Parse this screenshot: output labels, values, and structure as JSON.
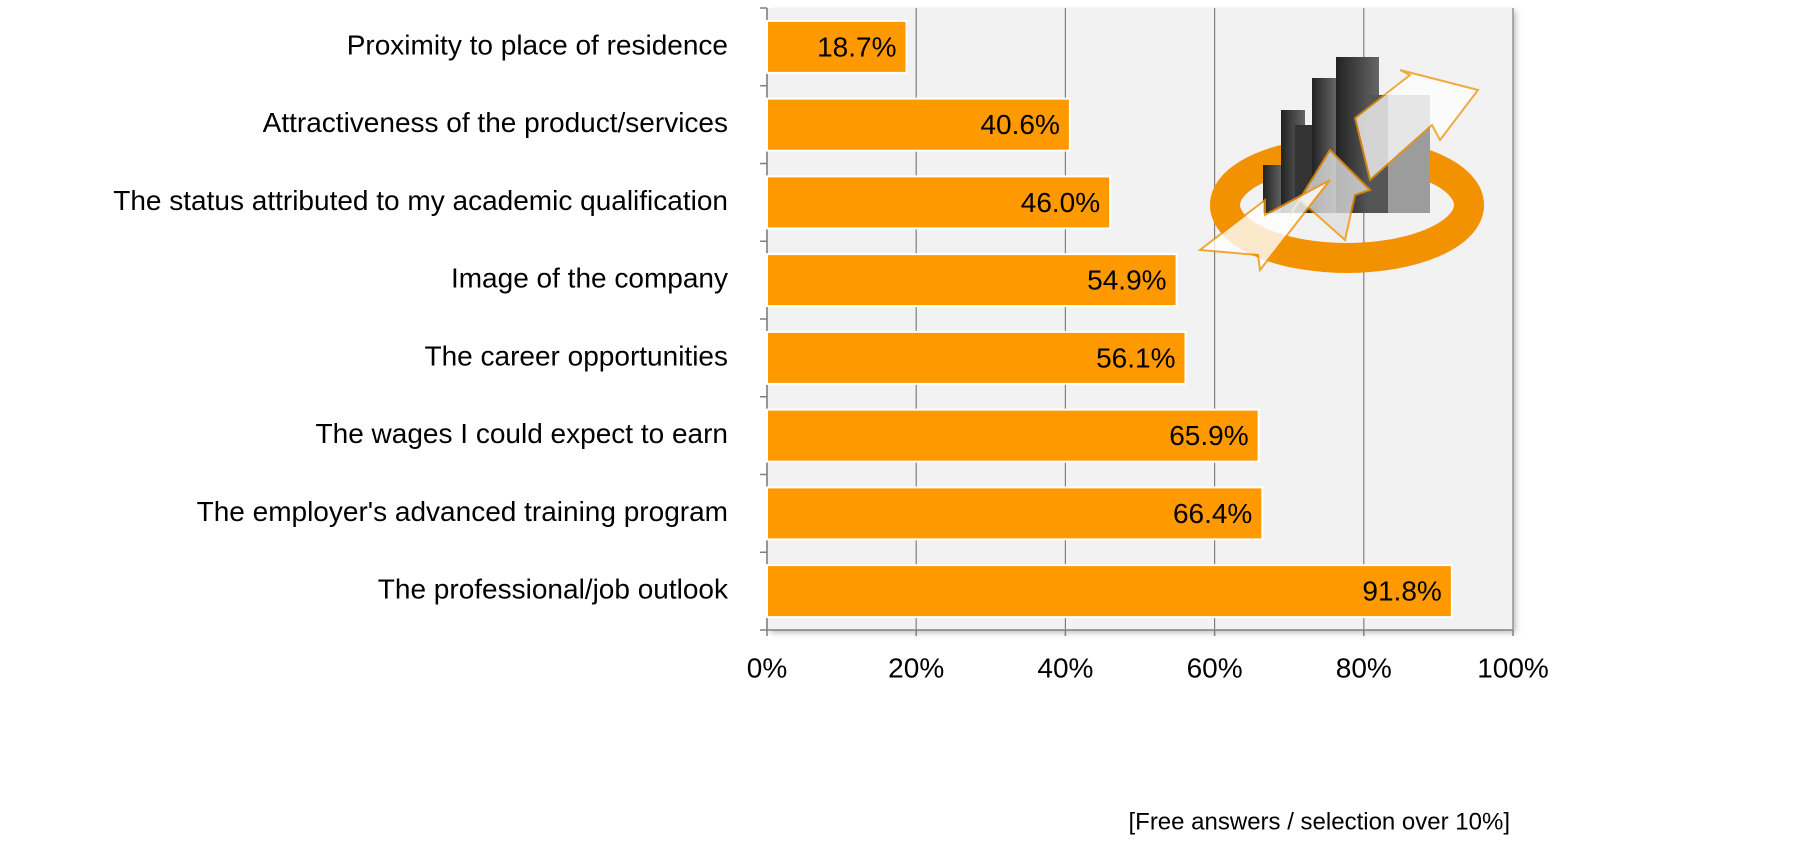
{
  "chart_data": {
    "type": "bar",
    "categories": [
      "Proximity to place of residence",
      "Attractiveness of the product/services",
      "The status attributed to my academic qualification",
      "Image of the company",
      "The career opportunities",
      "The wages I could expect to earn",
      "The employer's advanced training program",
      "The professional/job outlook"
    ],
    "values": [
      18.7,
      40.6,
      46.0,
      54.9,
      56.1,
      65.9,
      66.4,
      91.8
    ],
    "value_labels": [
      "18.7%",
      "40.6%",
      "46.0%",
      "54.9%",
      "56.1%",
      "65.9%",
      "66.4%",
      "91.8%"
    ],
    "color": "#ff9900",
    "xlim": [
      0,
      100
    ],
    "xticks": [
      {
        "value": 0,
        "label": "0%"
      },
      {
        "value": 20,
        "label": "20%"
      },
      {
        "value": 40,
        "label": "40%"
      },
      {
        "value": 60,
        "label": "60%"
      },
      {
        "value": 80,
        "label": "80%"
      },
      {
        "value": 100,
        "label": "100%"
      }
    ],
    "grid": true,
    "annotation": "[Free answers / selection over 10%]"
  }
}
